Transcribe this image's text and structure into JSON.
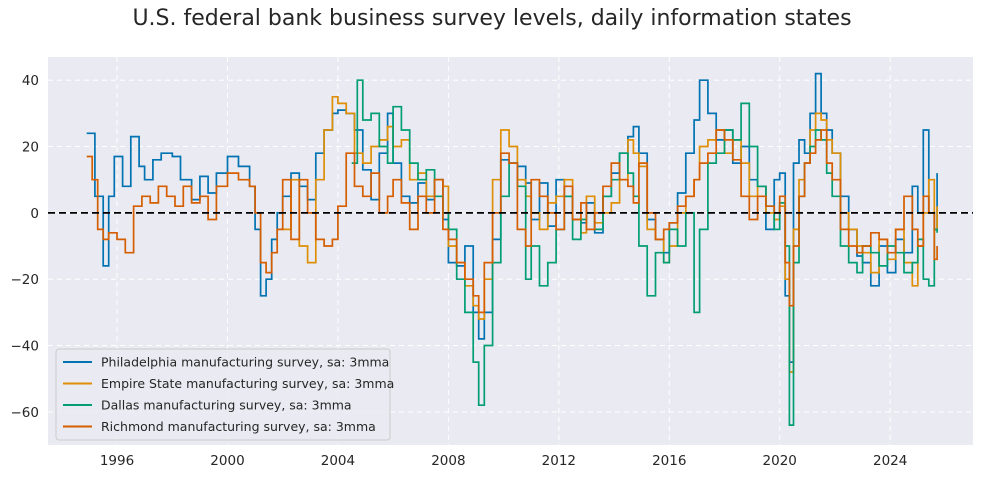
{
  "chart_data": {
    "type": "line",
    "title": "U.S. federal bank business survey levels, daily information states",
    "xlabel": "",
    "ylabel": "",
    "xlim": [
      1993.5,
      2027.0
    ],
    "ylim": [
      -70,
      47
    ],
    "x_ticks": [
      1996,
      2000,
      2004,
      2008,
      2012,
      2016,
      2020,
      2024
    ],
    "x_tick_labels": [
      "1996",
      "2000",
      "2004",
      "2008",
      "2012",
      "2016",
      "2020",
      "2024"
    ],
    "y_ticks": [
      -60,
      -40,
      -20,
      0,
      20,
      40
    ],
    "y_tick_labels": [
      "−60",
      "−40",
      "−20",
      "0",
      "20",
      "40"
    ],
    "zero_line": true,
    "grid": true,
    "legend_position": "lower-left",
    "series": [
      {
        "name": "Philadelphia manufacturing survey, sa: 3mma",
        "color": "#0173b2",
        "x": [
          1994.9,
          1995.2,
          1995.5,
          1995.7,
          1995.9,
          1996.2,
          1996.5,
          1996.8,
          1997.0,
          1997.3,
          1997.6,
          1998.0,
          1998.3,
          1998.7,
          1999.0,
          1999.3,
          1999.6,
          2000.0,
          2000.4,
          2000.8,
          2001.0,
          2001.2,
          2001.4,
          2001.6,
          2001.8,
          2002.0,
          2002.3,
          2002.6,
          2002.9,
          2003.2,
          2003.5,
          2003.8,
          2004.0,
          2004.3,
          2004.6,
          2004.9,
          2005.2,
          2005.5,
          2005.8,
          2006.0,
          2006.3,
          2006.6,
          2006.9,
          2007.2,
          2007.5,
          2007.8,
          2008.0,
          2008.3,
          2008.6,
          2008.9,
          2009.1,
          2009.3,
          2009.6,
          2009.9,
          2010.2,
          2010.5,
          2010.8,
          2011.0,
          2011.3,
          2011.6,
          2011.9,
          2012.2,
          2012.5,
          2012.8,
          2013.0,
          2013.3,
          2013.6,
          2013.9,
          2014.2,
          2014.5,
          2014.7,
          2014.9,
          2015.2,
          2015.5,
          2015.8,
          2016.0,
          2016.3,
          2016.6,
          2016.9,
          2017.1,
          2017.4,
          2017.7,
          2018.0,
          2018.3,
          2018.6,
          2018.9,
          2019.2,
          2019.5,
          2019.8,
          2020.0,
          2020.2,
          2020.35,
          2020.5,
          2020.7,
          2020.9,
          2021.1,
          2021.3,
          2021.5,
          2021.7,
          2021.9,
          2022.2,
          2022.5,
          2022.8,
          2023.0,
          2023.3,
          2023.6,
          2023.9,
          2024.2,
          2024.5,
          2024.8,
          2025.0,
          2025.2,
          2025.4,
          2025.6,
          2025.7
        ],
        "y": [
          24,
          5,
          -16,
          5,
          17,
          8,
          23,
          14,
          10,
          16,
          18,
          17,
          10,
          4,
          11,
          6,
          12,
          17,
          14,
          8,
          -5,
          -25,
          -20,
          -8,
          0,
          5,
          12,
          8,
          4,
          18,
          25,
          30,
          31,
          30,
          25,
          13,
          4,
          18,
          30,
          15,
          5,
          3,
          9,
          4,
          10,
          -2,
          -15,
          -16,
          -10,
          -30,
          -38,
          -30,
          -8,
          16,
          15,
          14,
          9,
          -2,
          9,
          -4,
          10,
          5,
          -2,
          -3,
          3,
          -6,
          5,
          12,
          18,
          23,
          26,
          18,
          -2,
          -8,
          -12,
          -3,
          6,
          18,
          28,
          40,
          30,
          22,
          25,
          15,
          20,
          10,
          8,
          -5,
          10,
          12,
          -25,
          -45,
          15,
          22,
          18,
          30,
          42,
          30,
          25,
          18,
          5,
          -5,
          -13,
          -15,
          -22,
          -10,
          -18,
          -8,
          -12,
          8,
          0,
          25,
          0,
          -5,
          12
        ]
      },
      {
        "name": "Empire State manufacturing survey, sa: 3mma",
        "color": "#de8f05",
        "x": [
          2002.0,
          2002.3,
          2002.6,
          2002.9,
          2003.2,
          2003.5,
          2003.8,
          2004.0,
          2004.3,
          2004.6,
          2004.9,
          2005.2,
          2005.5,
          2005.8,
          2006.0,
          2006.3,
          2006.6,
          2006.9,
          2007.2,
          2007.5,
          2007.8,
          2008.0,
          2008.3,
          2008.6,
          2008.9,
          2009.1,
          2009.3,
          2009.6,
          2009.9,
          2010.2,
          2010.5,
          2010.8,
          2011.0,
          2011.3,
          2011.6,
          2011.9,
          2012.2,
          2012.5,
          2012.8,
          2013.0,
          2013.3,
          2013.6,
          2013.9,
          2014.2,
          2014.5,
          2014.7,
          2014.9,
          2015.2,
          2015.5,
          2015.8,
          2016.0,
          2016.3,
          2016.6,
          2016.9,
          2017.1,
          2017.4,
          2017.7,
          2018.0,
          2018.3,
          2018.6,
          2018.9,
          2019.2,
          2019.5,
          2019.8,
          2020.0,
          2020.2,
          2020.35,
          2020.5,
          2020.7,
          2020.9,
          2021.1,
          2021.3,
          2021.5,
          2021.7,
          2021.9,
          2022.2,
          2022.5,
          2022.8,
          2023.0,
          2023.3,
          2023.6,
          2023.9,
          2024.2,
          2024.5,
          2024.8,
          2025.0,
          2025.2,
          2025.4,
          2025.6,
          2025.7
        ],
        "y": [
          -5,
          10,
          -10,
          -15,
          10,
          25,
          35,
          33,
          30,
          18,
          15,
          20,
          22,
          26,
          20,
          22,
          10,
          12,
          5,
          10,
          8,
          -10,
          -15,
          -22,
          -28,
          -32,
          -20,
          10,
          25,
          20,
          10,
          5,
          0,
          -5,
          3,
          5,
          10,
          -2,
          -6,
          5,
          -3,
          0,
          3,
          10,
          22,
          18,
          14,
          -5,
          -8,
          -15,
          -10,
          0,
          5,
          10,
          20,
          22,
          25,
          18,
          22,
          15,
          5,
          8,
          0,
          -2,
          2,
          -20,
          -48,
          -5,
          10,
          15,
          25,
          30,
          28,
          22,
          18,
          0,
          -5,
          -10,
          -12,
          -18,
          -8,
          -14,
          -5,
          -15,
          -22,
          -10,
          0,
          10,
          -5,
          2
        ]
      },
      {
        "name": "Dallas manufacturing survey, sa: 3mma",
        "color": "#029e73",
        "x": [
          2004.5,
          2004.7,
          2004.9,
          2005.2,
          2005.5,
          2005.8,
          2006.0,
          2006.3,
          2006.6,
          2006.9,
          2007.2,
          2007.5,
          2007.8,
          2008.0,
          2008.3,
          2008.6,
          2008.9,
          2009.1,
          2009.3,
          2009.6,
          2009.9,
          2010.2,
          2010.5,
          2010.8,
          2011.0,
          2011.3,
          2011.6,
          2011.9,
          2012.2,
          2012.5,
          2012.8,
          2013.0,
          2013.3,
          2013.6,
          2013.9,
          2014.2,
          2014.5,
          2014.7,
          2014.9,
          2015.2,
          2015.5,
          2015.8,
          2016.0,
          2016.3,
          2016.6,
          2016.9,
          2017.1,
          2017.4,
          2017.7,
          2018.0,
          2018.3,
          2018.6,
          2018.9,
          2019.2,
          2019.5,
          2019.8,
          2020.0,
          2020.2,
          2020.35,
          2020.5,
          2020.7,
          2020.9,
          2021.1,
          2021.3,
          2021.5,
          2021.7,
          2021.9,
          2022.2,
          2022.5,
          2022.8,
          2023.0,
          2023.3,
          2023.6,
          2023.9,
          2024.2,
          2024.5,
          2024.8,
          2025.0,
          2025.2,
          2025.4,
          2025.6,
          2025.7
        ],
        "y": [
          15,
          40,
          28,
          30,
          20,
          15,
          32,
          25,
          15,
          10,
          13,
          5,
          0,
          -5,
          -20,
          -30,
          -45,
          -58,
          -40,
          -15,
          5,
          15,
          8,
          -20,
          -10,
          -22,
          -15,
          -5,
          5,
          -8,
          -2,
          0,
          -5,
          5,
          10,
          18,
          12,
          5,
          -10,
          -25,
          -12,
          -15,
          -5,
          -10,
          0,
          -30,
          -5,
          15,
          18,
          25,
          22,
          33,
          20,
          8,
          2,
          -5,
          3,
          -10,
          -64,
          -15,
          5,
          15,
          20,
          25,
          22,
          12,
          5,
          -10,
          -15,
          -18,
          -10,
          -12,
          -16,
          -10,
          -12,
          -18,
          -15,
          -8,
          -20,
          -22,
          -5,
          -6
        ]
      },
      {
        "name": "Richmond manufacturing survey, sa: 3mma",
        "color": "#d55e00",
        "x": [
          1994.9,
          1995.1,
          1995.3,
          1995.5,
          1995.7,
          1996.0,
          1996.3,
          1996.6,
          1996.9,
          1997.2,
          1997.5,
          1997.8,
          1998.1,
          1998.4,
          1998.7,
          1999.0,
          1999.3,
          1999.6,
          2000.0,
          2000.4,
          2000.8,
          2001.0,
          2001.2,
          2001.4,
          2001.6,
          2001.8,
          2002.0,
          2002.3,
          2002.6,
          2002.9,
          2003.2,
          2003.5,
          2003.8,
          2004.0,
          2004.3,
          2004.6,
          2004.9,
          2005.2,
          2005.5,
          2005.8,
          2006.0,
          2006.3,
          2006.6,
          2006.9,
          2007.2,
          2007.5,
          2007.8,
          2008.0,
          2008.3,
          2008.6,
          2008.9,
          2009.1,
          2009.3,
          2009.6,
          2009.9,
          2010.2,
          2010.5,
          2010.8,
          2011.0,
          2011.3,
          2011.6,
          2011.9,
          2012.2,
          2012.5,
          2012.8,
          2013.0,
          2013.3,
          2013.6,
          2013.9,
          2014.2,
          2014.5,
          2014.7,
          2014.9,
          2015.2,
          2015.5,
          2015.8,
          2016.0,
          2016.3,
          2016.6,
          2016.9,
          2017.1,
          2017.4,
          2017.7,
          2018.0,
          2018.3,
          2018.6,
          2018.9,
          2019.2,
          2019.5,
          2019.8,
          2020.0,
          2020.2,
          2020.35,
          2020.5,
          2020.7,
          2020.9,
          2021.1,
          2021.3,
          2021.5,
          2021.7,
          2021.9,
          2022.2,
          2022.5,
          2022.8,
          2023.0,
          2023.3,
          2023.6,
          2023.9,
          2024.2,
          2024.5,
          2024.8,
          2025.0,
          2025.2,
          2025.4,
          2025.6,
          2025.7
        ],
        "y": [
          17,
          10,
          -5,
          -8,
          -6,
          -8,
          -12,
          2,
          5,
          3,
          8,
          5,
          2,
          8,
          3,
          5,
          -2,
          8,
          12,
          10,
          8,
          0,
          -15,
          -18,
          -12,
          -5,
          10,
          -8,
          10,
          0,
          -8,
          -10,
          -8,
          2,
          18,
          8,
          5,
          12,
          0,
          5,
          10,
          3,
          -5,
          5,
          0,
          10,
          -5,
          -8,
          -15,
          -20,
          -25,
          -30,
          -15,
          0,
          18,
          15,
          -5,
          -10,
          10,
          5,
          0,
          -5,
          8,
          -2,
          3,
          -5,
          0,
          8,
          15,
          10,
          8,
          3,
          15,
          0,
          -8,
          -5,
          -3,
          2,
          5,
          10,
          15,
          18,
          25,
          22,
          16,
          5,
          -2,
          5,
          2,
          0,
          5,
          -15,
          -28,
          -10,
          5,
          15,
          18,
          22,
          25,
          15,
          10,
          -5,
          -10,
          -12,
          -10,
          -6,
          -8,
          -12,
          -5,
          5,
          -5,
          -10,
          5,
          0,
          -14,
          -10
        ]
      }
    ]
  }
}
